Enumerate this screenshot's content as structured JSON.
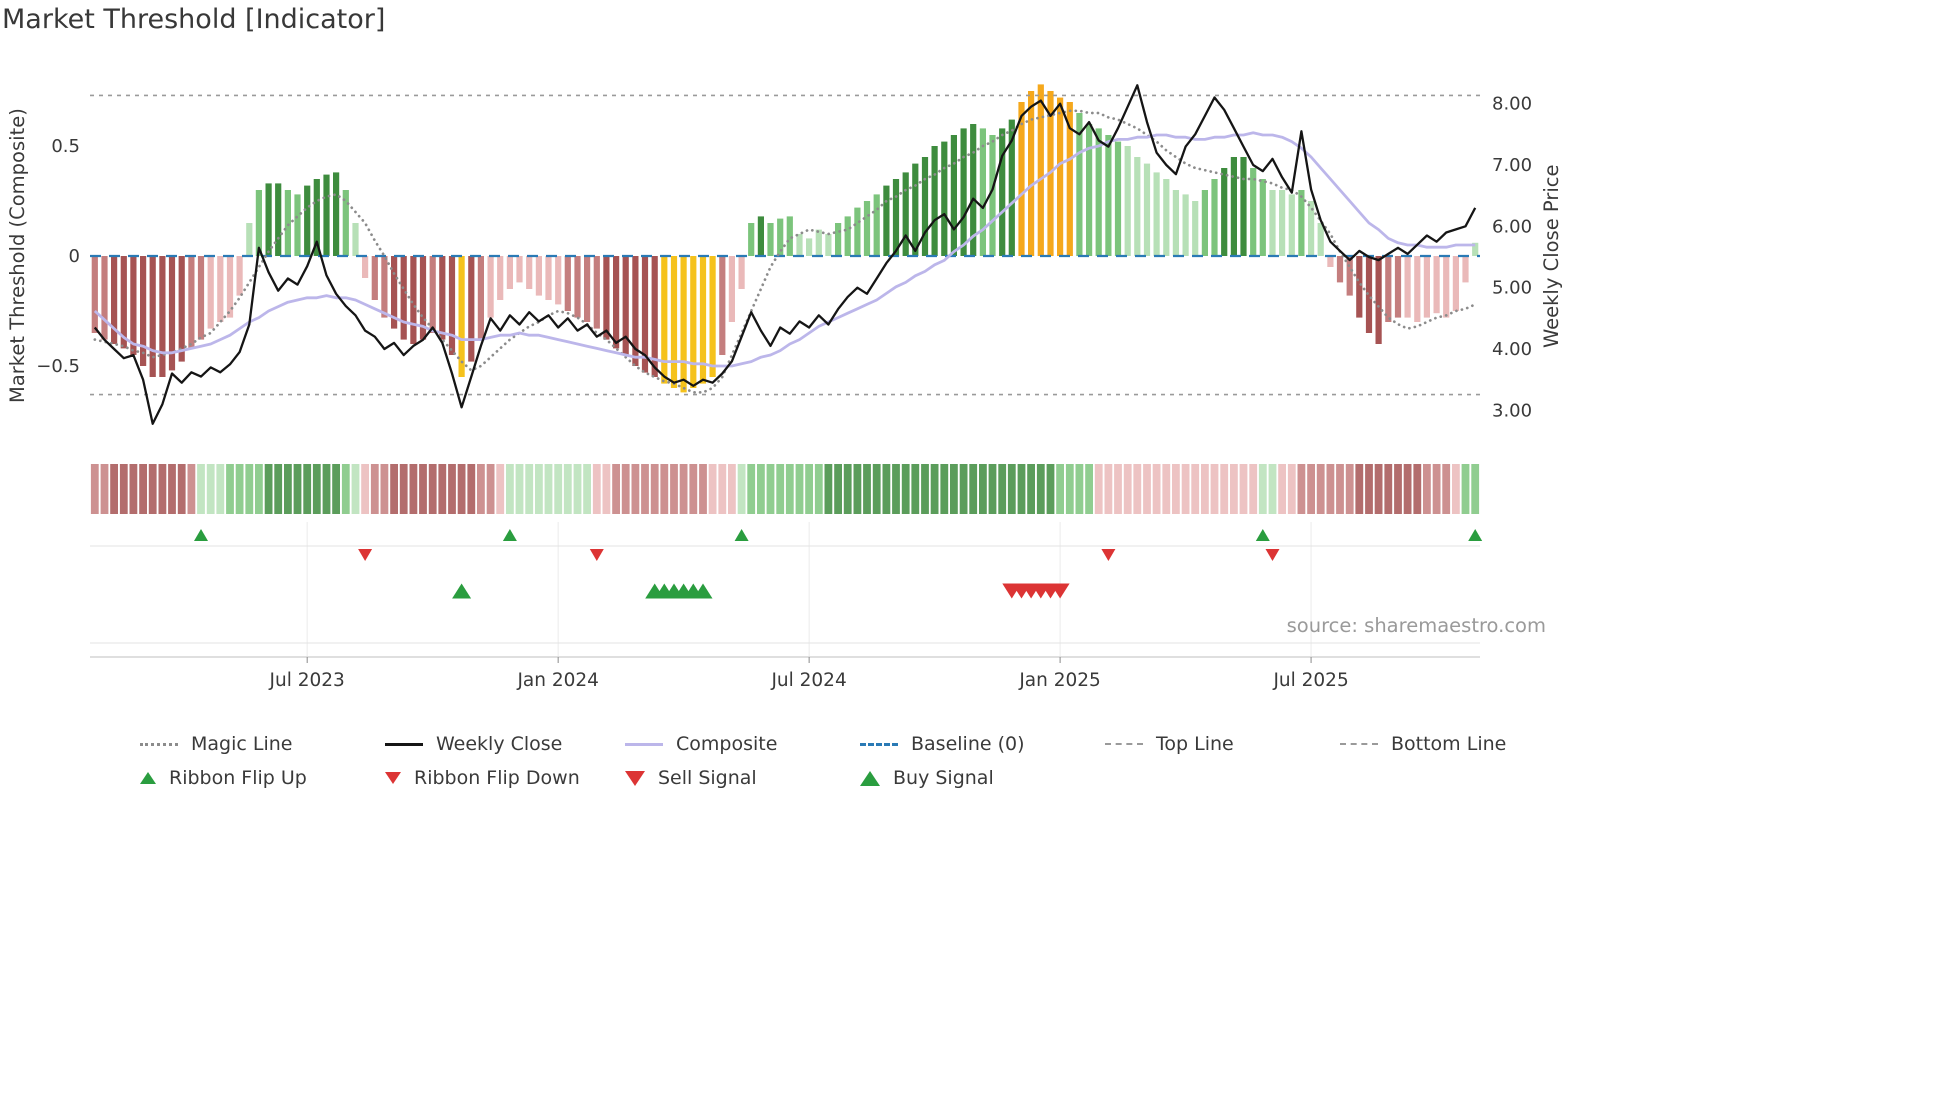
{
  "chart_data": {
    "type": "mixed",
    "subtype": "bar histogram + line overlays + signal markers + color ribbon",
    "title": "Market Threshold [Indicator]",
    "source": "source: sharemaestro.com",
    "x_unit": "weekly",
    "n_weeks": 144,
    "x_ticks": [
      {
        "week": 22,
        "label": "Jul 2023"
      },
      {
        "week": 48,
        "label": "Jan 2024"
      },
      {
        "week": 74,
        "label": "Jul 2024"
      },
      {
        "week": 100,
        "label": "Jan 2025"
      },
      {
        "week": 126,
        "label": "Jul 2025"
      }
    ],
    "left_axis": {
      "label": "Market Threshold (Composite)",
      "ticks": [
        {
          "v": 0.5,
          "label": "0.5"
        },
        {
          "v": 0,
          "label": "0"
        },
        {
          "v": -0.5,
          "label": "−0.5"
        }
      ],
      "range": [
        -0.86,
        0.86
      ],
      "grid": false
    },
    "right_axis": {
      "label": "Weekly Close Price",
      "ticks": [
        {
          "v": 8,
          "label": "8.00"
        },
        {
          "v": 7,
          "label": "7.00"
        },
        {
          "v": 6,
          "label": "6.00"
        },
        {
          "v": 5,
          "label": "5.00"
        },
        {
          "v": 4,
          "label": "4.00"
        },
        {
          "v": 3,
          "label": "3.00"
        }
      ],
      "range": [
        2.5,
        8.5
      ]
    },
    "baseline": 0,
    "top_line": 0.73,
    "bottom_line": -0.63,
    "threshold_bars": {
      "values": [
        -0.35,
        -0.38,
        -0.4,
        -0.42,
        -0.45,
        -0.5,
        -0.55,
        -0.55,
        -0.52,
        -0.48,
        -0.42,
        -0.38,
        -0.33,
        -0.3,
        -0.28,
        -0.18,
        0.15,
        0.3,
        0.33,
        0.33,
        0.3,
        0.28,
        0.32,
        0.35,
        0.37,
        0.38,
        0.3,
        0.15,
        -0.1,
        -0.2,
        -0.28,
        -0.33,
        -0.38,
        -0.4,
        -0.38,
        -0.35,
        -0.38,
        -0.45,
        -0.55,
        -0.48,
        -0.38,
        -0.28,
        -0.2,
        -0.15,
        -0.12,
        -0.15,
        -0.18,
        -0.2,
        -0.22,
        -0.25,
        -0.28,
        -0.3,
        -0.33,
        -0.38,
        -0.42,
        -0.45,
        -0.5,
        -0.53,
        -0.55,
        -0.58,
        -0.6,
        -0.62,
        -0.6,
        -0.58,
        -0.55,
        -0.45,
        -0.3,
        -0.15,
        0.15,
        0.18,
        0.15,
        0.17,
        0.18,
        0.1,
        0.08,
        0.12,
        0.1,
        0.15,
        0.18,
        0.22,
        0.25,
        0.28,
        0.32,
        0.35,
        0.38,
        0.42,
        0.45,
        0.5,
        0.52,
        0.55,
        0.58,
        0.6,
        0.58,
        0.55,
        0.58,
        0.62,
        0.7,
        0.75,
        0.78,
        0.75,
        0.72,
        0.7,
        0.65,
        0.6,
        0.58,
        0.55,
        0.52,
        0.5,
        0.45,
        0.42,
        0.38,
        0.35,
        0.3,
        0.28,
        0.25,
        0.3,
        0.35,
        0.4,
        0.45,
        0.45,
        0.4,
        0.35,
        0.3,
        0.3,
        0.28,
        0.3,
        0.25,
        0.15,
        -0.05,
        -0.12,
        -0.18,
        -0.28,
        -0.35,
        -0.4,
        -0.3,
        -0.28,
        -0.28,
        -0.3,
        -0.28,
        -0.26,
        -0.28,
        -0.25,
        -0.12,
        0.06
      ],
      "colors": [
        "r2",
        "r2",
        "r3",
        "r3",
        "r3",
        "r3",
        "r3",
        "r3",
        "r3",
        "r3",
        "r2",
        "r2",
        "r1",
        "r1",
        "r1",
        "r1",
        "g1",
        "g2",
        "g3",
        "g3",
        "g2",
        "g2",
        "g3",
        "g3",
        "g3",
        "g3",
        "g2",
        "g1",
        "r1",
        "r2",
        "r2",
        "r3",
        "r3",
        "r3",
        "r3",
        "r2",
        "r3",
        "r3",
        "y",
        "r3",
        "r2",
        "r1",
        "r1",
        "r1",
        "r1",
        "r1",
        "r1",
        "r1",
        "r1",
        "r2",
        "r2",
        "r2",
        "r2",
        "r3",
        "r3",
        "r3",
        "r3",
        "r3",
        "r3",
        "y",
        "y",
        "y",
        "y",
        "y",
        "y",
        "r2",
        "r1",
        "r1",
        "g2",
        "g3",
        "g2",
        "g2",
        "g2",
        "g1",
        "g1",
        "g1",
        "g1",
        "g2",
        "g2",
        "g2",
        "g2",
        "g2",
        "g3",
        "g3",
        "g3",
        "g3",
        "g3",
        "g3",
        "g3",
        "g3",
        "g3",
        "g3",
        "g2",
        "g2",
        "g3",
        "g3",
        "o",
        "o",
        "o",
        "o",
        "o",
        "o",
        "g2",
        "g2",
        "g2",
        "g2",
        "g2",
        "g1",
        "g1",
        "g1",
        "g1",
        "g1",
        "g1",
        "g1",
        "g1",
        "g2",
        "g2",
        "g3",
        "g3",
        "g3",
        "g2",
        "g2",
        "g1",
        "g1",
        "g1",
        "g2",
        "g1",
        "g1",
        "r1",
        "r2",
        "r2",
        "r3",
        "r3",
        "r3",
        "r2",
        "r2",
        "r1",
        "r1",
        "r1",
        "r1",
        "r1",
        "r1",
        "r1",
        "g1"
      ]
    },
    "ribbon": [
      "r2",
      "r2",
      "r3",
      "r3",
      "r3",
      "r3",
      "r3",
      "r3",
      "r3",
      "r3",
      "r2",
      "g1",
      "g1",
      "g1",
      "g2",
      "g2",
      "g2",
      "g2",
      "g3",
      "g3",
      "g3",
      "g3",
      "g3",
      "g3",
      "g3",
      "g3",
      "g2",
      "g1",
      "r1",
      "r2",
      "r2",
      "r3",
      "r3",
      "r3",
      "r3",
      "r3",
      "r3",
      "r3",
      "r3",
      "r3",
      "r2",
      "r2",
      "r1",
      "g1",
      "g1",
      "g1",
      "g1",
      "g1",
      "g1",
      "g1",
      "g1",
      "g1",
      "r1",
      "r1",
      "r2",
      "r2",
      "r2",
      "r2",
      "r2",
      "r2",
      "r2",
      "r2",
      "r2",
      "r2",
      "r1",
      "r1",
      "r1",
      "g1",
      "g2",
      "g2",
      "g2",
      "g2",
      "g2",
      "g2",
      "g2",
      "g2",
      "g3",
      "g3",
      "g3",
      "g3",
      "g3",
      "g3",
      "g3",
      "g3",
      "g3",
      "g3",
      "g3",
      "g3",
      "g3",
      "g3",
      "g3",
      "g3",
      "g3",
      "g3",
      "g3",
      "g3",
      "g3",
      "g3",
      "g3",
      "g3",
      "g2",
      "g2",
      "g2",
      "g2",
      "r1",
      "r1",
      "r1",
      "r1",
      "r1",
      "r1",
      "r1",
      "r1",
      "r1",
      "r1",
      "r1",
      "r1",
      "r1",
      "r1",
      "r1",
      "r1",
      "r1",
      "g1",
      "g1",
      "r1",
      "r1",
      "r2",
      "r2",
      "r2",
      "r2",
      "r2",
      "r2",
      "r3",
      "r3",
      "r3",
      "r3",
      "r3",
      "r3",
      "r3",
      "r2",
      "r2",
      "r2",
      "r1",
      "g2",
      "g2"
    ],
    "series": [
      {
        "name": "Magic Line",
        "axis": "left",
        "values": [
          -0.38,
          -0.39,
          -0.4,
          -0.41,
          -0.43,
          -0.44,
          -0.46,
          -0.45,
          -0.44,
          -0.42,
          -0.4,
          -0.37,
          -0.35,
          -0.3,
          -0.25,
          -0.19,
          -0.12,
          -0.05,
          0.02,
          0.08,
          0.14,
          0.18,
          0.22,
          0.25,
          0.27,
          0.28,
          0.25,
          0.2,
          0.15,
          0.07,
          0.0,
          -0.08,
          -0.15,
          -0.22,
          -0.28,
          -0.33,
          -0.38,
          -0.43,
          -0.48,
          -0.52,
          -0.5,
          -0.46,
          -0.42,
          -0.38,
          -0.35,
          -0.32,
          -0.3,
          -0.27,
          -0.25,
          -0.26,
          -0.28,
          -0.31,
          -0.35,
          -0.38,
          -0.42,
          -0.46,
          -0.5,
          -0.53,
          -0.55,
          -0.57,
          -0.58,
          -0.6,
          -0.62,
          -0.62,
          -0.6,
          -0.55,
          -0.45,
          -0.35,
          -0.25,
          -0.15,
          -0.05,
          0.02,
          0.08,
          0.1,
          0.12,
          0.11,
          0.1,
          0.11,
          0.12,
          0.15,
          0.18,
          0.21,
          0.25,
          0.27,
          0.3,
          0.32,
          0.35,
          0.37,
          0.4,
          0.42,
          0.45,
          0.47,
          0.5,
          0.52,
          0.55,
          0.57,
          0.6,
          0.62,
          0.63,
          0.64,
          0.65,
          0.66,
          0.66,
          0.65,
          0.65,
          0.63,
          0.62,
          0.6,
          0.58,
          0.55,
          0.52,
          0.48,
          0.45,
          0.42,
          0.4,
          0.39,
          0.38,
          0.37,
          0.36,
          0.35,
          0.35,
          0.34,
          0.33,
          0.31,
          0.3,
          0.27,
          0.22,
          0.16,
          0.1,
          0.02,
          -0.05,
          -0.12,
          -0.18,
          -0.23,
          -0.28,
          -0.31,
          -0.33,
          -0.32,
          -0.3,
          -0.28,
          -0.27,
          -0.25,
          -0.24,
          -0.22
        ]
      },
      {
        "name": "Composite",
        "axis": "left",
        "values": [
          -0.25,
          -0.29,
          -0.33,
          -0.37,
          -0.4,
          -0.41,
          -0.43,
          -0.44,
          -0.44,
          -0.43,
          -0.42,
          -0.41,
          -0.4,
          -0.38,
          -0.36,
          -0.33,
          -0.3,
          -0.28,
          -0.25,
          -0.23,
          -0.21,
          -0.2,
          -0.19,
          -0.19,
          -0.18,
          -0.19,
          -0.19,
          -0.2,
          -0.22,
          -0.24,
          -0.26,
          -0.28,
          -0.3,
          -0.31,
          -0.32,
          -0.34,
          -0.35,
          -0.36,
          -0.38,
          -0.38,
          -0.38,
          -0.37,
          -0.36,
          -0.36,
          -0.35,
          -0.36,
          -0.36,
          -0.37,
          -0.38,
          -0.39,
          -0.4,
          -0.41,
          -0.42,
          -0.43,
          -0.44,
          -0.45,
          -0.46,
          -0.46,
          -0.47,
          -0.48,
          -0.48,
          -0.48,
          -0.49,
          -0.49,
          -0.5,
          -0.5,
          -0.5,
          -0.49,
          -0.48,
          -0.46,
          -0.45,
          -0.43,
          -0.4,
          -0.38,
          -0.35,
          -0.32,
          -0.3,
          -0.28,
          -0.26,
          -0.24,
          -0.22,
          -0.2,
          -0.17,
          -0.14,
          -0.12,
          -0.09,
          -0.07,
          -0.04,
          -0.02,
          0.02,
          0.05,
          0.09,
          0.12,
          0.16,
          0.2,
          0.24,
          0.28,
          0.32,
          0.35,
          0.38,
          0.42,
          0.44,
          0.47,
          0.49,
          0.5,
          0.52,
          0.53,
          0.53,
          0.54,
          0.54,
          0.55,
          0.55,
          0.54,
          0.54,
          0.53,
          0.53,
          0.54,
          0.54,
          0.55,
          0.55,
          0.56,
          0.55,
          0.55,
          0.54,
          0.52,
          0.49,
          0.45,
          0.4,
          0.35,
          0.3,
          0.25,
          0.2,
          0.15,
          0.12,
          0.08,
          0.06,
          0.05,
          0.05,
          0.04,
          0.04,
          0.04,
          0.05,
          0.05,
          0.05
        ]
      },
      {
        "name": "Weekly Close",
        "axis": "right",
        "values": [
          4.35,
          4.15,
          4.0,
          3.85,
          3.9,
          3.5,
          2.78,
          3.1,
          3.6,
          3.45,
          3.62,
          3.55,
          3.7,
          3.62,
          3.75,
          3.95,
          4.4,
          5.65,
          5.25,
          4.95,
          5.15,
          5.05,
          5.35,
          5.75,
          5.2,
          4.9,
          4.7,
          4.55,
          4.3,
          4.2,
          4.0,
          4.1,
          3.9,
          4.05,
          4.15,
          4.35,
          4.1,
          3.6,
          3.05,
          3.55,
          4.05,
          4.5,
          4.3,
          4.55,
          4.4,
          4.6,
          4.45,
          4.55,
          4.35,
          4.5,
          4.3,
          4.4,
          4.2,
          4.3,
          4.1,
          4.2,
          4.0,
          3.9,
          3.7,
          3.55,
          3.45,
          3.5,
          3.4,
          3.5,
          3.45,
          3.6,
          3.8,
          4.2,
          4.6,
          4.3,
          4.05,
          4.35,
          4.25,
          4.45,
          4.35,
          4.55,
          4.4,
          4.65,
          4.85,
          5.0,
          4.9,
          5.15,
          5.4,
          5.6,
          5.85,
          5.6,
          5.9,
          6.1,
          6.2,
          5.95,
          6.15,
          6.45,
          6.3,
          6.6,
          7.15,
          7.4,
          7.8,
          7.95,
          8.05,
          7.8,
          8.0,
          7.6,
          7.5,
          7.7,
          7.4,
          7.3,
          7.6,
          7.95,
          8.3,
          7.7,
          7.2,
          7.0,
          6.85,
          7.3,
          7.5,
          7.8,
          8.1,
          7.9,
          7.6,
          7.3,
          7.0,
          6.9,
          7.1,
          6.8,
          6.55,
          7.55,
          6.6,
          6.1,
          5.75,
          5.6,
          5.45,
          5.6,
          5.5,
          5.45,
          5.55,
          5.65,
          5.55,
          5.7,
          5.85,
          5.75,
          5.9,
          5.95,
          6.0,
          6.3
        ]
      }
    ],
    "signals": {
      "ribbon_flip_up_weeks": [
        11,
        43,
        67,
        121,
        143
      ],
      "ribbon_flip_down_weeks": [
        28,
        52,
        105,
        122
      ],
      "buy_signal_weeks": [
        38,
        58,
        59,
        60,
        61,
        62,
        63
      ],
      "sell_signal_weeks": [
        95,
        96,
        97,
        98,
        99,
        100
      ]
    }
  },
  "colors": {
    "palette": {
      "r3": "#a65353",
      "r2": "#c47e7e",
      "r1": "#eab9b9",
      "g1": "#b7e0b7",
      "g2": "#7cc47c",
      "g3": "#3e8c3e",
      "y": "#f5c21c",
      "o": "#f5a81c"
    },
    "weekly_close": "#151515",
    "magic": "#8c8c8c",
    "composite": "#bcb6ea",
    "baseline": "#2a7ab5",
    "guide": "#9a9a9a",
    "grid": "#ebebeb",
    "lane_line": "#e3e3e3",
    "axis_line": "#cccccc",
    "marker_green": "#2a9d3f",
    "marker_red": "#dc3434",
    "tick_text": "#3a3a3a"
  },
  "legend": {
    "items": [
      {
        "label": "Magic Line"
      },
      {
        "label": "Weekly Close"
      },
      {
        "label": "Composite"
      },
      {
        "label": "Baseline (0)"
      },
      {
        "label": "Top Line"
      },
      {
        "label": "Bottom Line"
      },
      {
        "label": "Ribbon Flip Up"
      },
      {
        "label": "Ribbon Flip Down"
      },
      {
        "label": "Sell Signal"
      },
      {
        "label": "Buy Signal"
      }
    ]
  }
}
